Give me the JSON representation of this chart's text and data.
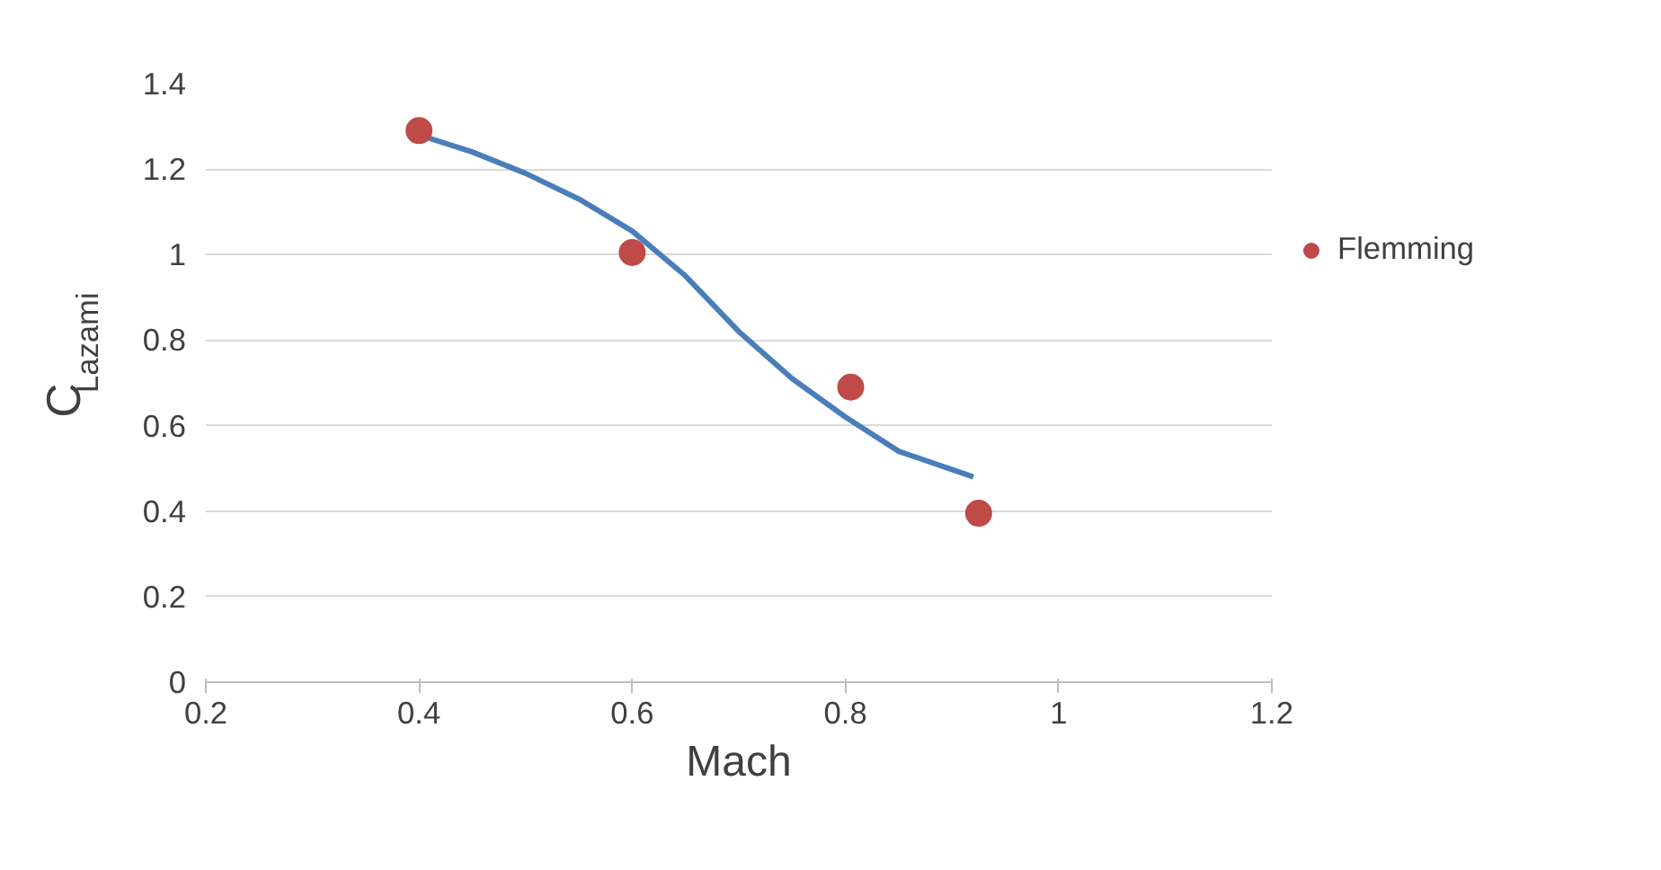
{
  "chart_data": {
    "type": "line",
    "xlabel": "Mach",
    "ylabel": "C$_{Lazami}$",
    "xlim": [
      0.2,
      1.2
    ],
    "xticks": [
      0.2,
      0.4,
      0.6,
      0.8,
      1,
      1.2
    ],
    "ylim": [
      0,
      1.4
    ],
    "yticks": [
      0,
      0.2,
      0.4,
      0.6,
      0.8,
      1,
      1.2,
      1.4
    ],
    "grid": "y",
    "legend": "right",
    "series": [
      {
        "type": "line",
        "color": "#4a7ebb",
        "x": [
          0.4,
          0.45,
          0.5,
          0.55,
          0.6,
          0.65,
          0.7,
          0.75,
          0.8,
          0.85,
          0.92
        ],
        "values": [
          1.28,
          1.24,
          1.19,
          1.13,
          1.055,
          0.95,
          0.82,
          0.71,
          0.62,
          0.54,
          0.48
        ]
      },
      {
        "type": "scatter",
        "name": "Flemming",
        "color": "#be4b48",
        "marker": "circle",
        "x": [
          0.4,
          0.6,
          0.805,
          0.925
        ],
        "values": [
          1.29,
          1.005,
          0.69,
          0.395
        ]
      }
    ]
  }
}
